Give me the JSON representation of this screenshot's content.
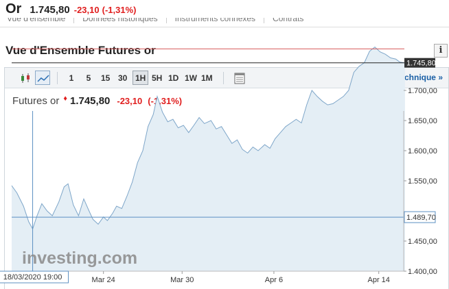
{
  "header": {
    "symbol": "Or",
    "price": "1.745,80",
    "change": "-23,10",
    "change_pct": "(-1,31%)",
    "subnav": [
      "Vue d'ensemble",
      "Données historiques",
      "Instruments connexes",
      "Contrats"
    ]
  },
  "section": {
    "title": "Vue d'Ensemble Futures or",
    "info_label": "i"
  },
  "toolbar": {
    "icons": [
      "candlestick-icon",
      "area-chart-icon",
      "settings-table-icon"
    ],
    "timeframes": [
      "1",
      "5",
      "15",
      "30",
      "1H",
      "5H",
      "1D",
      "1W",
      "1M"
    ],
    "selected_timeframe": "1H",
    "technical_link": "Graphique technique »"
  },
  "quote": {
    "name": "Futures or",
    "arrow": "♦",
    "price": "1.745,80",
    "change": "-23,10",
    "change_pct": "(-1,31%)"
  },
  "colors": {
    "up": "#e01e1e",
    "line": "#7ea6c9",
    "fill": "#e4eef5",
    "link": "#1a5fa5"
  },
  "chart_data": {
    "type": "area",
    "y_ticks": [
      "1.700,00",
      "1.650,00",
      "1.600,00",
      "1.550,00",
      "1.450,00",
      "1.400,00"
    ],
    "y_tick_values": [
      1700,
      1650,
      1600,
      1550,
      1450,
      1400
    ],
    "ylim": [
      1400,
      1790
    ],
    "x_ticks": [
      "Mar 24",
      "Mar 30",
      "Apr 6",
      "Apr 14"
    ],
    "x_tick_dates": [
      "2020-03-24",
      "2020-03-30",
      "2020-04-06",
      "2020-04-14"
    ],
    "x_range_dates": [
      "2020-03-17",
      "2020-04-15"
    ],
    "last_label": "1.745,80",
    "last_value": 1745.8,
    "reference_line": 1768.9,
    "crosshair_label": "1.489,70",
    "crosshair_value": 1489.7,
    "crosshair_date": "18/03/2020 19:00",
    "watermark": "investing.com",
    "series": [
      {
        "values": [
          [
            0.0,
            1542
          ],
          [
            0.4,
            1530
          ],
          [
            0.9,
            1508
          ],
          [
            1.3,
            1482
          ],
          [
            1.6,
            1470
          ],
          [
            1.9,
            1490
          ],
          [
            2.3,
            1512
          ],
          [
            2.7,
            1500
          ],
          [
            3.1,
            1492
          ],
          [
            3.6,
            1515
          ],
          [
            4.0,
            1540
          ],
          [
            4.3,
            1545
          ],
          [
            4.7,
            1510
          ],
          [
            5.1,
            1492
          ],
          [
            5.5,
            1520
          ],
          [
            5.9,
            1500
          ],
          [
            6.2,
            1486
          ],
          [
            6.6,
            1478
          ],
          [
            7.0,
            1490
          ],
          [
            7.3,
            1484
          ],
          [
            7.7,
            1496
          ],
          [
            8.0,
            1508
          ],
          [
            8.4,
            1504
          ],
          [
            8.8,
            1525
          ],
          [
            9.2,
            1548
          ],
          [
            9.6,
            1580
          ],
          [
            10.0,
            1600
          ],
          [
            10.4,
            1640
          ],
          [
            10.8,
            1660
          ],
          [
            11.1,
            1690
          ],
          [
            11.5,
            1664
          ],
          [
            11.9,
            1648
          ],
          [
            12.3,
            1652
          ],
          [
            12.7,
            1638
          ],
          [
            13.1,
            1642
          ],
          [
            13.5,
            1630
          ],
          [
            13.9,
            1642
          ],
          [
            14.3,
            1655
          ],
          [
            14.7,
            1645
          ],
          [
            15.2,
            1650
          ],
          [
            15.6,
            1636
          ],
          [
            16.0,
            1640
          ],
          [
            16.4,
            1626
          ],
          [
            16.8,
            1612
          ],
          [
            17.2,
            1618
          ],
          [
            17.6,
            1602
          ],
          [
            18.0,
            1596
          ],
          [
            18.4,
            1606
          ],
          [
            18.8,
            1600
          ],
          [
            19.3,
            1610
          ],
          [
            19.7,
            1604
          ],
          [
            20.1,
            1620
          ],
          [
            20.5,
            1630
          ],
          [
            20.9,
            1640
          ],
          [
            21.3,
            1646
          ],
          [
            21.7,
            1652
          ],
          [
            22.1,
            1646
          ],
          [
            22.5,
            1676
          ],
          [
            22.9,
            1700
          ],
          [
            23.3,
            1690
          ],
          [
            23.7,
            1682
          ],
          [
            24.1,
            1676
          ],
          [
            24.5,
            1678
          ],
          [
            24.9,
            1684
          ],
          [
            25.3,
            1690
          ],
          [
            25.7,
            1700
          ],
          [
            26.1,
            1730
          ],
          [
            26.5,
            1740
          ],
          [
            26.9,
            1746
          ],
          [
            27.3,
            1765
          ],
          [
            27.7,
            1772
          ],
          [
            28.1,
            1764
          ],
          [
            28.5,
            1760
          ],
          [
            28.9,
            1754
          ],
          [
            29.3,
            1752
          ],
          [
            29.6,
            1747
          ],
          [
            30.0,
            1745.8
          ]
        ]
      }
    ]
  }
}
